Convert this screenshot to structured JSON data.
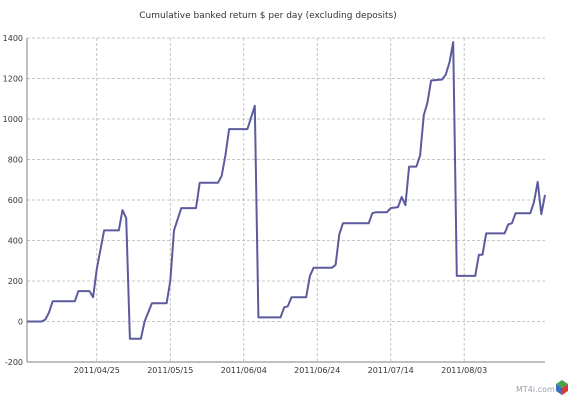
{
  "chart_data": {
    "type": "line",
    "title": "Cumulative banked return $ per day (excluding deposits)",
    "xlabel": "",
    "ylabel": "",
    "x_tick_labels": [
      "2011/04/25",
      "2011/05/15",
      "2011/06/04",
      "2011/06/24",
      "2011/07/14",
      "2011/08/03"
    ],
    "x_tick_days": [
      0,
      20,
      40,
      60,
      80,
      100
    ],
    "y_ticks": [
      -200,
      0,
      200,
      400,
      600,
      800,
      1000,
      1200,
      1400
    ],
    "ylim": [
      -200,
      1400
    ],
    "grid": true,
    "legend": "none",
    "colors": {
      "line": "#5b5b9e",
      "grid": "#b5b5b5",
      "axis": "#7f7f7f"
    },
    "series": [
      {
        "name": "",
        "points": [
          [
            -19,
            0
          ],
          [
            -15,
            0
          ],
          [
            -14,
            10
          ],
          [
            -13,
            45
          ],
          [
            -12,
            100
          ],
          [
            -6,
            100
          ],
          [
            -5,
            150
          ],
          [
            -2,
            150
          ],
          [
            -1,
            120
          ],
          [
            0,
            260
          ],
          [
            2,
            450
          ],
          [
            6,
            450
          ],
          [
            7,
            550
          ],
          [
            8,
            510
          ],
          [
            9,
            -85
          ],
          [
            12,
            -85
          ],
          [
            13,
            0
          ],
          [
            15,
            90
          ],
          [
            19,
            90
          ],
          [
            20,
            200
          ],
          [
            21,
            450
          ],
          [
            23,
            560
          ],
          [
            27,
            560
          ],
          [
            28,
            685
          ],
          [
            33,
            685
          ],
          [
            34,
            720
          ],
          [
            35,
            820
          ],
          [
            36,
            950
          ],
          [
            41,
            950
          ],
          [
            43,
            1065
          ],
          [
            44,
            20
          ],
          [
            50,
            20
          ],
          [
            51,
            70
          ],
          [
            52,
            75
          ],
          [
            53,
            120
          ],
          [
            57,
            120
          ],
          [
            58,
            225
          ],
          [
            59,
            265
          ],
          [
            64,
            265
          ],
          [
            65,
            280
          ],
          [
            66,
            430
          ],
          [
            67,
            485
          ],
          [
            74,
            485
          ],
          [
            75,
            535
          ],
          [
            76,
            540
          ],
          [
            79,
            540
          ],
          [
            80,
            560
          ],
          [
            82,
            565
          ],
          [
            83,
            615
          ],
          [
            84,
            575
          ],
          [
            85,
            765
          ],
          [
            87,
            765
          ],
          [
            88,
            820
          ],
          [
            89,
            1020
          ],
          [
            90,
            1080
          ],
          [
            91,
            1190
          ],
          [
            94,
            1195
          ],
          [
            95,
            1220
          ],
          [
            96,
            1280
          ],
          [
            97,
            1380
          ],
          [
            98,
            225
          ],
          [
            103,
            225
          ],
          [
            104,
            330
          ],
          [
            105,
            330
          ],
          [
            106,
            435
          ],
          [
            111,
            435
          ],
          [
            112,
            480
          ],
          [
            113,
            485
          ],
          [
            114,
            535
          ],
          [
            118,
            535
          ],
          [
            119,
            590
          ],
          [
            120,
            690
          ],
          [
            121,
            530
          ],
          [
            122,
            625
          ]
        ]
      }
    ]
  },
  "watermark": "MT4i.com"
}
